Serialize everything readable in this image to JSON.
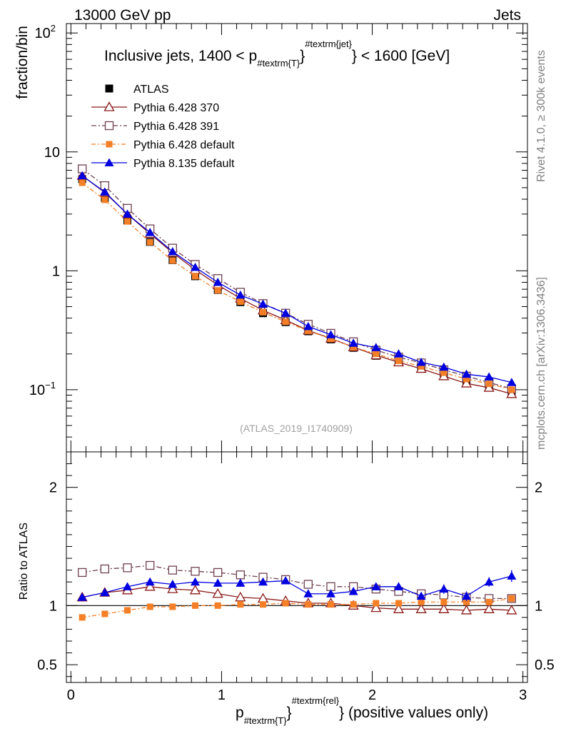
{
  "header": {
    "left": "13000 GeV pp",
    "right": "Jets"
  },
  "side_labels": {
    "rivet": "Rivet 4.1.0, ≥ 300k events",
    "mcplots": "mcplots.cern.ch [arXiv:1306.3436]"
  },
  "chart_data": {
    "type": "line",
    "title": "Inclusive jets, 1400 < p_{#textrm{T}}^{#textrm{jet}} < 1600 [GeV]",
    "title_parts": {
      "main_a": "Inclusive jets, 1400 < p",
      "sub": "#textrm{T}",
      "sup": "#textrm{jet}",
      "main_b": "} < 1600 [GeV]",
      "brace_a": "}"
    },
    "watermark": "(ATLAS_2019_I1740909)",
    "ylabel": "fraction/bin",
    "ratio_ylabel": "Ratio to ATLAS",
    "xlabel_parts": {
      "p": "p",
      "sub": "#textrm{T}",
      "sup": "#textrm{rel}",
      "brace_a": "}",
      "tail": "} (positive values only)"
    },
    "xlim": [
      -0.03,
      3.03
    ],
    "ylim_log": [
      0.03,
      120
    ],
    "ratio_ylim": [
      0.35,
      2.3
    ],
    "x_ticks": [
      "0",
      "1",
      "2",
      "3"
    ],
    "y_ticks": [
      {
        "value": 100,
        "label": "10",
        "sup": "2"
      },
      {
        "value": 10,
        "label": "10",
        "sup": ""
      },
      {
        "value": 1,
        "label": "1",
        "sup": ""
      },
      {
        "value": 0.1,
        "label": "10",
        "sup": "−1"
      }
    ],
    "ratio_ticks": [
      "0.5",
      "1",
      "2"
    ],
    "x": [
      0.075,
      0.225,
      0.375,
      0.525,
      0.675,
      0.825,
      0.975,
      1.125,
      1.275,
      1.425,
      1.575,
      1.725,
      1.875,
      2.025,
      2.175,
      2.325,
      2.475,
      2.625,
      2.775,
      2.925
    ],
    "reference": {
      "name": "ATLAS",
      "values": [
        5.9,
        4.1,
        2.65,
        1.75,
        1.23,
        0.9,
        0.69,
        0.545,
        0.44,
        0.37,
        0.31,
        0.265,
        0.225,
        0.193,
        0.17,
        0.152,
        0.133,
        0.118,
        0.107,
        0.096
      ]
    },
    "series": [
      {
        "name": "Pythia 6.428 370",
        "color": "#8b1a1a",
        "dash": "",
        "marker": "triangle-open",
        "values": [
          6.3,
          4.55,
          3.0,
          2.05,
          1.42,
          1.02,
          0.76,
          0.585,
          0.465,
          0.385,
          0.315,
          0.27,
          0.228,
          0.195,
          0.17,
          0.15,
          0.13,
          0.113,
          0.104,
          0.092
        ],
        "ratio": [
          1.07,
          1.11,
          1.13,
          1.16,
          1.14,
          1.13,
          1.1,
          1.07,
          1.06,
          1.04,
          1.02,
          1.02,
          1.0,
          0.98,
          0.97,
          0.97,
          0.97,
          0.96,
          0.97,
          0.96
        ]
      },
      {
        "name": "Pythia 6.428 391",
        "color": "#6e4050",
        "dash": "7,3,2,3",
        "marker": "square-open",
        "values": [
          7.2,
          5.2,
          3.35,
          2.25,
          1.55,
          1.13,
          0.86,
          0.66,
          0.53,
          0.44,
          0.355,
          0.298,
          0.253,
          0.215,
          0.188,
          0.168,
          0.147,
          0.13,
          0.115,
          0.102
        ],
        "ratio": [
          1.28,
          1.31,
          1.32,
          1.34,
          1.3,
          1.29,
          1.28,
          1.26,
          1.24,
          1.22,
          1.18,
          1.16,
          1.16,
          1.14,
          1.12,
          1.1,
          1.09,
          1.07,
          1.06,
          1.06
        ]
      },
      {
        "name": "Pythia 6.428 default",
        "color": "#f47f26",
        "dash": "6,3,2,3",
        "marker": "square-filled",
        "values": [
          5.5,
          3.95,
          2.6,
          1.74,
          1.22,
          0.9,
          0.685,
          0.55,
          0.448,
          0.372,
          0.313,
          0.268,
          0.228,
          0.2,
          0.175,
          0.157,
          0.139,
          0.123,
          0.112,
          0.1
        ],
        "ratio": [
          0.9,
          0.93,
          0.96,
          0.99,
          0.99,
          1.0,
          1.0,
          1.01,
          1.01,
          1.02,
          1.01,
          1.01,
          1.01,
          1.02,
          1.02,
          1.03,
          1.03,
          1.03,
          1.03,
          1.06
        ]
      },
      {
        "name": "Pythia 8.135 default",
        "color": "#0000e0",
        "dash": "",
        "marker": "triangle-filled",
        "values": [
          6.3,
          4.6,
          3.0,
          2.1,
          1.45,
          1.07,
          0.8,
          0.625,
          0.525,
          0.44,
          0.34,
          0.29,
          0.246,
          0.226,
          0.2,
          0.17,
          0.155,
          0.135,
          0.128,
          0.115
        ],
        "ratio": [
          1.07,
          1.11,
          1.16,
          1.2,
          1.18,
          1.2,
          1.19,
          1.19,
          1.2,
          1.21,
          1.1,
          1.1,
          1.12,
          1.16,
          1.16,
          1.08,
          1.14,
          1.08,
          1.2,
          1.25
        ],
        "ratio_err": [
          0.01,
          0.01,
          0.015,
          0.015,
          0.015,
          0.015,
          0.02,
          0.02,
          0.02,
          0.02,
          0.02,
          0.025,
          0.025,
          0.03,
          0.03,
          0.03,
          0.04,
          0.04,
          0.04,
          0.05
        ]
      }
    ]
  }
}
